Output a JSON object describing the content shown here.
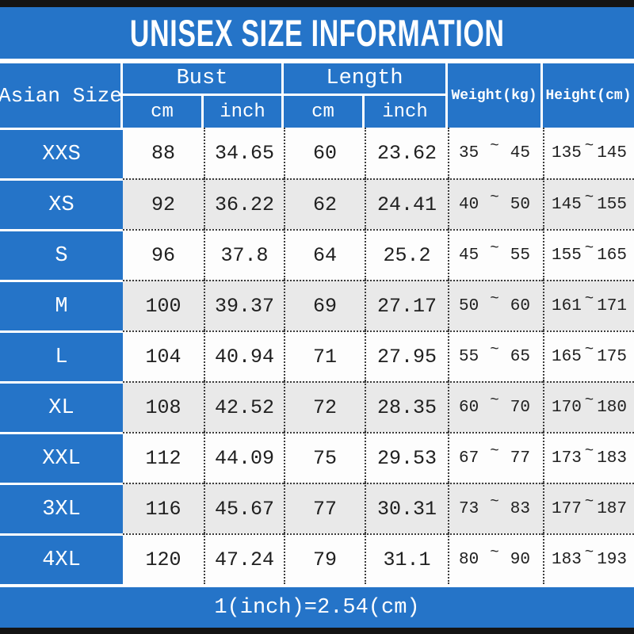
{
  "title": "UNISEX SIZE INFORMATION",
  "footer_note": "1(inch)=2.54(cm)",
  "colors": {
    "accent_blue": "#2574c8",
    "black_bar": "#141414",
    "row_shade": "#e9e9e9",
    "row_light": "#fdfdfd"
  },
  "table": {
    "size_col_header": "Asian Size",
    "bust_group_label": "Bust",
    "length_group_label": "Length",
    "sub_cm": "cm",
    "sub_inch": "inch",
    "weight_header": "Weight(kg)",
    "height_header": "Height(cm)",
    "range_separator": "~",
    "rows": [
      {
        "size": "XXS",
        "bust_cm": "88",
        "bust_inch": "34.65",
        "length_cm": "60",
        "length_inch": "23.62",
        "weight_min": "35",
        "weight_max": "45",
        "height_min": "135",
        "height_max": "145"
      },
      {
        "size": "XS",
        "bust_cm": "92",
        "bust_inch": "36.22",
        "length_cm": "62",
        "length_inch": "24.41",
        "weight_min": "40",
        "weight_max": "50",
        "height_min": "145",
        "height_max": "155"
      },
      {
        "size": "S",
        "bust_cm": "96",
        "bust_inch": "37.8",
        "length_cm": "64",
        "length_inch": "25.2",
        "weight_min": "45",
        "weight_max": "55",
        "height_min": "155",
        "height_max": "165"
      },
      {
        "size": "M",
        "bust_cm": "100",
        "bust_inch": "39.37",
        "length_cm": "69",
        "length_inch": "27.17",
        "weight_min": "50",
        "weight_max": "60",
        "height_min": "161",
        "height_max": "171"
      },
      {
        "size": "L",
        "bust_cm": "104",
        "bust_inch": "40.94",
        "length_cm": "71",
        "length_inch": "27.95",
        "weight_min": "55",
        "weight_max": "65",
        "height_min": "165",
        "height_max": "175"
      },
      {
        "size": "XL",
        "bust_cm": "108",
        "bust_inch": "42.52",
        "length_cm": "72",
        "length_inch": "28.35",
        "weight_min": "60",
        "weight_max": "70",
        "height_min": "170",
        "height_max": "180"
      },
      {
        "size": "XXL",
        "bust_cm": "112",
        "bust_inch": "44.09",
        "length_cm": "75",
        "length_inch": "29.53",
        "weight_min": "67",
        "weight_max": "77",
        "height_min": "173",
        "height_max": "183"
      },
      {
        "size": "3XL",
        "bust_cm": "116",
        "bust_inch": "45.67",
        "length_cm": "77",
        "length_inch": "30.31",
        "weight_min": "73",
        "weight_max": "83",
        "height_min": "177",
        "height_max": "187"
      },
      {
        "size": "4XL",
        "bust_cm": "120",
        "bust_inch": "47.24",
        "length_cm": "79",
        "length_inch": "31.1",
        "weight_min": "80",
        "weight_max": "90",
        "height_min": "183",
        "height_max": "193"
      }
    ]
  },
  "chart_data": {
    "type": "table",
    "title": "UNISEX SIZE INFORMATION",
    "columns": [
      "Asian Size",
      "Bust cm",
      "Bust inch",
      "Length cm",
      "Length inch",
      "Weight(kg)",
      "Height(cm)"
    ],
    "rows": [
      [
        "XXS",
        88,
        34.65,
        60,
        23.62,
        "35~45",
        "135~145"
      ],
      [
        "XS",
        92,
        36.22,
        62,
        24.41,
        "40~50",
        "145~155"
      ],
      [
        "S",
        96,
        37.8,
        64,
        25.2,
        "45~55",
        "155~165"
      ],
      [
        "M",
        100,
        39.37,
        69,
        27.17,
        "50~60",
        "161~171"
      ],
      [
        "L",
        104,
        40.94,
        71,
        27.95,
        "55~65",
        "165~175"
      ],
      [
        "XL",
        108,
        42.52,
        72,
        28.35,
        "60~70",
        "170~180"
      ],
      [
        "XXL",
        112,
        44.09,
        75,
        29.53,
        "67~77",
        "173~183"
      ],
      [
        "3XL",
        116,
        45.67,
        77,
        30.31,
        "73~83",
        "177~187"
      ],
      [
        "4XL",
        120,
        47.24,
        79,
        31.1,
        "80~90",
        "183~193"
      ]
    ],
    "note": "1(inch)=2.54(cm)"
  }
}
